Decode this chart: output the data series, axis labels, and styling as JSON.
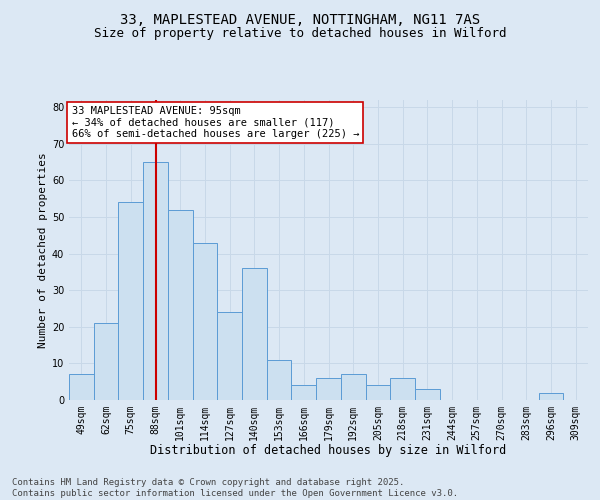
{
  "title_line1": "33, MAPLESTEAD AVENUE, NOTTINGHAM, NG11 7AS",
  "title_line2": "Size of property relative to detached houses in Wilford",
  "xlabel": "Distribution of detached houses by size in Wilford",
  "ylabel": "Number of detached properties",
  "categories": [
    "49sqm",
    "62sqm",
    "75sqm",
    "88sqm",
    "101sqm",
    "114sqm",
    "127sqm",
    "140sqm",
    "153sqm",
    "166sqm",
    "179sqm",
    "192sqm",
    "205sqm",
    "218sqm",
    "231sqm",
    "244sqm",
    "257sqm",
    "270sqm",
    "283sqm",
    "296sqm",
    "309sqm"
  ],
  "values": [
    7,
    21,
    54,
    65,
    52,
    43,
    24,
    36,
    11,
    4,
    6,
    7,
    4,
    6,
    3,
    0,
    0,
    0,
    0,
    2,
    0
  ],
  "bar_color": "#cce0f0",
  "bar_edge_color": "#5b9bd5",
  "vline_x": 3.0,
  "vline_color": "#cc0000",
  "annotation_text": "33 MAPLESTEAD AVENUE: 95sqm\n← 34% of detached houses are smaller (117)\n66% of semi-detached houses are larger (225) →",
  "annotation_box_color": "#ffffff",
  "annotation_box_edge": "#cc0000",
  "ylim": [
    0,
    82
  ],
  "yticks": [
    0,
    10,
    20,
    30,
    40,
    50,
    60,
    70,
    80
  ],
  "grid_color": "#c8d8e8",
  "bg_color": "#dce8f4",
  "footer": "Contains HM Land Registry data © Crown copyright and database right 2025.\nContains public sector information licensed under the Open Government Licence v3.0.",
  "title_fontsize": 10,
  "subtitle_fontsize": 9,
  "xlabel_fontsize": 8.5,
  "ylabel_fontsize": 8,
  "tick_fontsize": 7,
  "annotation_fontsize": 7.5,
  "footer_fontsize": 6.5
}
